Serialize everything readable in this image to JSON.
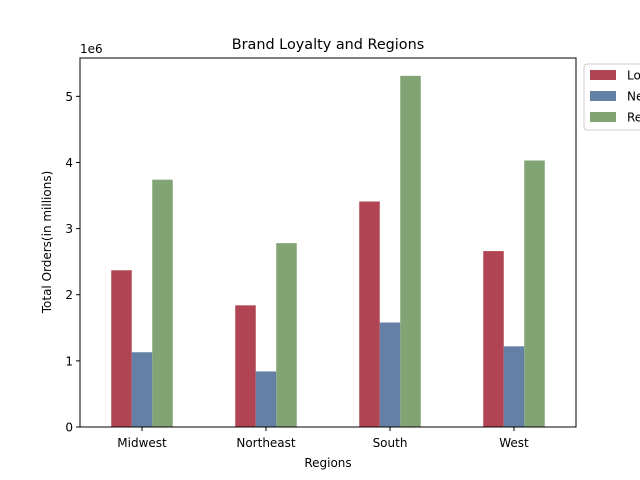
{
  "chart_data": {
    "type": "bar",
    "title": "Brand Loyalty and Regions",
    "xlabel": "Regions",
    "ylabel": "Total Orders(in millions)",
    "y_offset_label": "1e6",
    "categories": [
      "Midwest",
      "Northeast",
      "South",
      "West"
    ],
    "ylim": [
      0,
      5580000
    ],
    "yticks": [
      0,
      1,
      2,
      3,
      4,
      5
    ],
    "grid": false,
    "legend_position": "outside top-right (clipped)",
    "series": [
      {
        "name": "Lo",
        "color": "#b04452",
        "values": [
          2370000,
          1840000,
          3410000,
          2660000
        ]
      },
      {
        "name": "Ne",
        "color": "#6480a6",
        "values": [
          1130000,
          840000,
          1580000,
          1220000
        ]
      },
      {
        "name": "Re",
        "color": "#82a474",
        "values": [
          3740000,
          2780000,
          5310000,
          4030000
        ]
      }
    ]
  }
}
